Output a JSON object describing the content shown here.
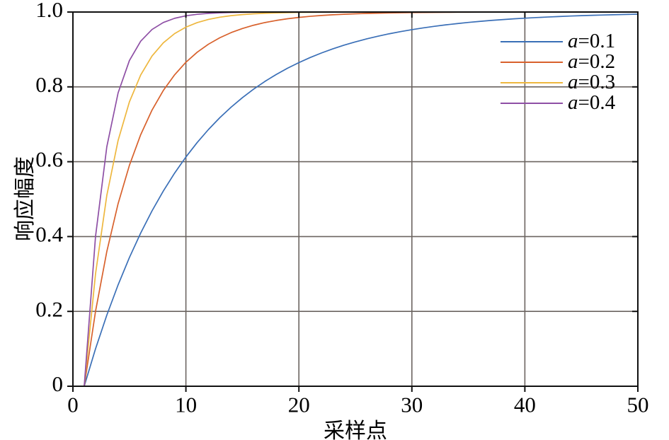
{
  "figure": {
    "background": "#ffffff"
  },
  "chart_data": {
    "type": "line",
    "title": "",
    "xlabel": "采样点",
    "ylabel": "响应幅度",
    "xlim": [
      0,
      50
    ],
    "ylim": [
      0,
      1
    ],
    "grid": true,
    "grid_color": "#6b6460",
    "axis_color": "#111111",
    "tick_label_color": "#000000",
    "legend_position": "top-right",
    "legend_frame": false,
    "xticks": {
      "values": [
        0,
        10,
        20,
        30,
        40,
        50
      ],
      "labels": [
        "0",
        "10",
        "20",
        "30",
        "40",
        "50"
      ]
    },
    "yticks": {
      "values": [
        0,
        0.2,
        0.4,
        0.6,
        0.8,
        1.0
      ],
      "labels": [
        "0",
        "0.2",
        "0.4",
        "0.6",
        "0.8",
        "1.0"
      ]
    },
    "x": [
      1,
      2,
      3,
      4,
      5,
      6,
      7,
      8,
      9,
      10,
      11,
      12,
      13,
      14,
      15,
      16,
      17,
      18,
      19,
      20,
      21,
      22,
      23,
      24,
      25,
      26,
      27,
      28,
      29,
      30,
      31,
      32,
      33,
      34,
      35,
      36,
      37,
      38,
      39,
      40,
      41,
      42,
      43,
      44,
      45,
      46,
      47,
      48,
      49,
      50
    ],
    "series": [
      {
        "label": "a=0.1",
        "legend_var": "a",
        "legend_rest": "=0.1",
        "a": 0.1,
        "color": "#3A6FB7",
        "y": [
          0,
          0.1,
          0.19,
          0.271,
          0.3439,
          0.4095,
          0.4686,
          0.5217,
          0.5695,
          0.6126,
          0.6513,
          0.6862,
          0.7176,
          0.7458,
          0.7712,
          0.7941,
          0.8147,
          0.8332,
          0.8499,
          0.8649,
          0.8784,
          0.8906,
          0.9015,
          0.9114,
          0.9202,
          0.9282,
          0.9354,
          0.9419,
          0.9477,
          0.9529,
          0.9576,
          0.9618,
          0.9657,
          0.9691,
          0.9722,
          0.975,
          0.9775,
          0.9797,
          0.9818,
          0.9836,
          0.9852,
          0.9867,
          0.988,
          0.9892,
          0.9903,
          0.9913,
          0.9921,
          0.9929,
          0.9936,
          0.9943
        ]
      },
      {
        "label": "a=0.2",
        "legend_var": "a",
        "legend_rest": "=0.2",
        "a": 0.2,
        "color": "#D8612C",
        "y": [
          0,
          0.2,
          0.36,
          0.488,
          0.5904,
          0.6723,
          0.7379,
          0.7903,
          0.8322,
          0.8658,
          0.8926,
          0.9141,
          0.9313,
          0.945,
          0.956,
          0.9648,
          0.9719,
          0.9775,
          0.982,
          0.9856,
          0.9885,
          0.9908,
          0.9926,
          0.9941,
          0.9953,
          0.9962,
          0.997,
          0.9976,
          0.9981,
          0.9985,
          0.9988,
          0.999,
          0.9992,
          0.9994,
          0.9995,
          0.9996,
          0.9997,
          0.9997,
          0.9998,
          0.9998,
          0.9999,
          0.9999,
          0.9999,
          0.9999,
          1,
          1,
          1,
          1,
          1,
          1
        ]
      },
      {
        "label": "a=0.3",
        "legend_var": "a",
        "legend_rest": "=0.3",
        "a": 0.3,
        "color": "#EEB73E",
        "y": [
          0,
          0.3,
          0.51,
          0.657,
          0.7599,
          0.8319,
          0.8824,
          0.9176,
          0.9424,
          0.9596,
          0.9718,
          0.9802,
          0.9862,
          0.9903,
          0.9932,
          0.9953,
          0.9967,
          0.9977,
          0.9984,
          0.9989,
          0.9992,
          0.9994,
          0.9996,
          0.9997,
          0.9998,
          0.9999,
          0.9999,
          0.9999,
          1,
          1,
          1,
          1,
          1,
          1,
          1,
          1,
          1,
          1,
          1,
          1,
          1,
          1,
          1,
          1,
          1,
          1,
          1,
          1,
          1,
          1
        ]
      },
      {
        "label": "a=0.4",
        "legend_var": "a",
        "legend_rest": "=0.4",
        "a": 0.4,
        "color": "#8E4FA5",
        "y": [
          0,
          0.4,
          0.64,
          0.784,
          0.8704,
          0.9222,
          0.9533,
          0.972,
          0.9832,
          0.9899,
          0.994,
          0.9964,
          0.9978,
          0.9987,
          0.9992,
          0.9995,
          0.9997,
          0.9998,
          0.9999,
          0.9999,
          1,
          1,
          1,
          1,
          1,
          1,
          1,
          1,
          1,
          1,
          1,
          1,
          1,
          1,
          1,
          1,
          1,
          1,
          1,
          1,
          1,
          1,
          1,
          1,
          1,
          1,
          1,
          1,
          1,
          1
        ]
      }
    ]
  }
}
